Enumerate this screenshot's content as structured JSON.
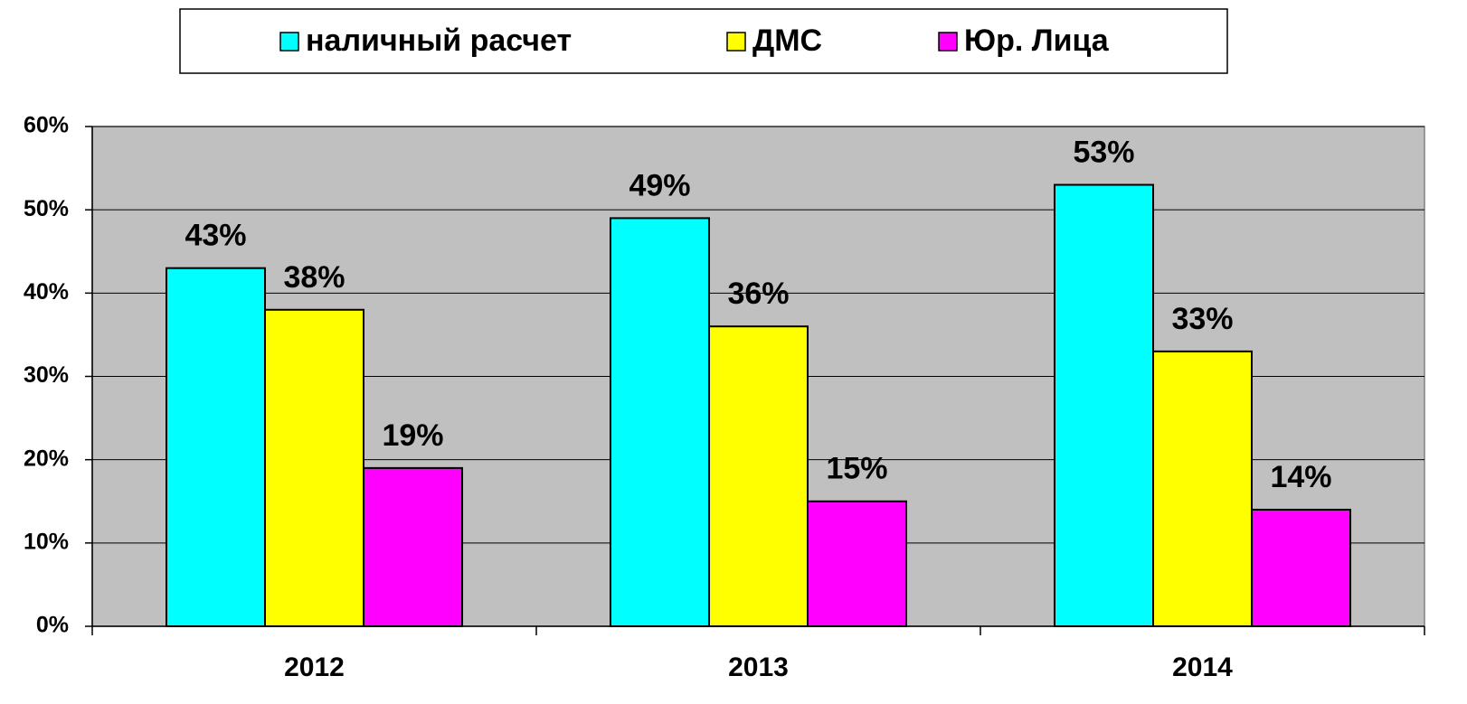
{
  "chart_data": {
    "type": "bar",
    "categories": [
      "2012",
      "2013",
      "2014"
    ],
    "series": [
      {
        "name": "наличный расчет",
        "color": "#00ffff",
        "values": [
          43,
          49,
          53
        ],
        "value_labels": [
          "43%",
          "49%",
          "53%"
        ]
      },
      {
        "name": "ДМС",
        "color": "#ffff00",
        "values": [
          38,
          36,
          33
        ],
        "value_labels": [
          "38%",
          "36%",
          "33%"
        ]
      },
      {
        "name": "Юр. Лица",
        "color": "#ff00ff",
        "values": [
          19,
          15,
          14
        ],
        "value_labels": [
          "19%",
          "15%",
          "14%"
        ]
      }
    ],
    "ylim": [
      0,
      60
    ],
    "yticks": [
      {
        "value": 0,
        "label": "0%"
      },
      {
        "value": 10,
        "label": "10%"
      },
      {
        "value": 20,
        "label": "20%"
      },
      {
        "value": 30,
        "label": "30%"
      },
      {
        "value": 40,
        "label": "40%"
      },
      {
        "value": 50,
        "label": "50%"
      },
      {
        "value": 60,
        "label": "60%"
      }
    ],
    "grid": true,
    "legend": "top",
    "plot_background": "#c0c0c0"
  }
}
